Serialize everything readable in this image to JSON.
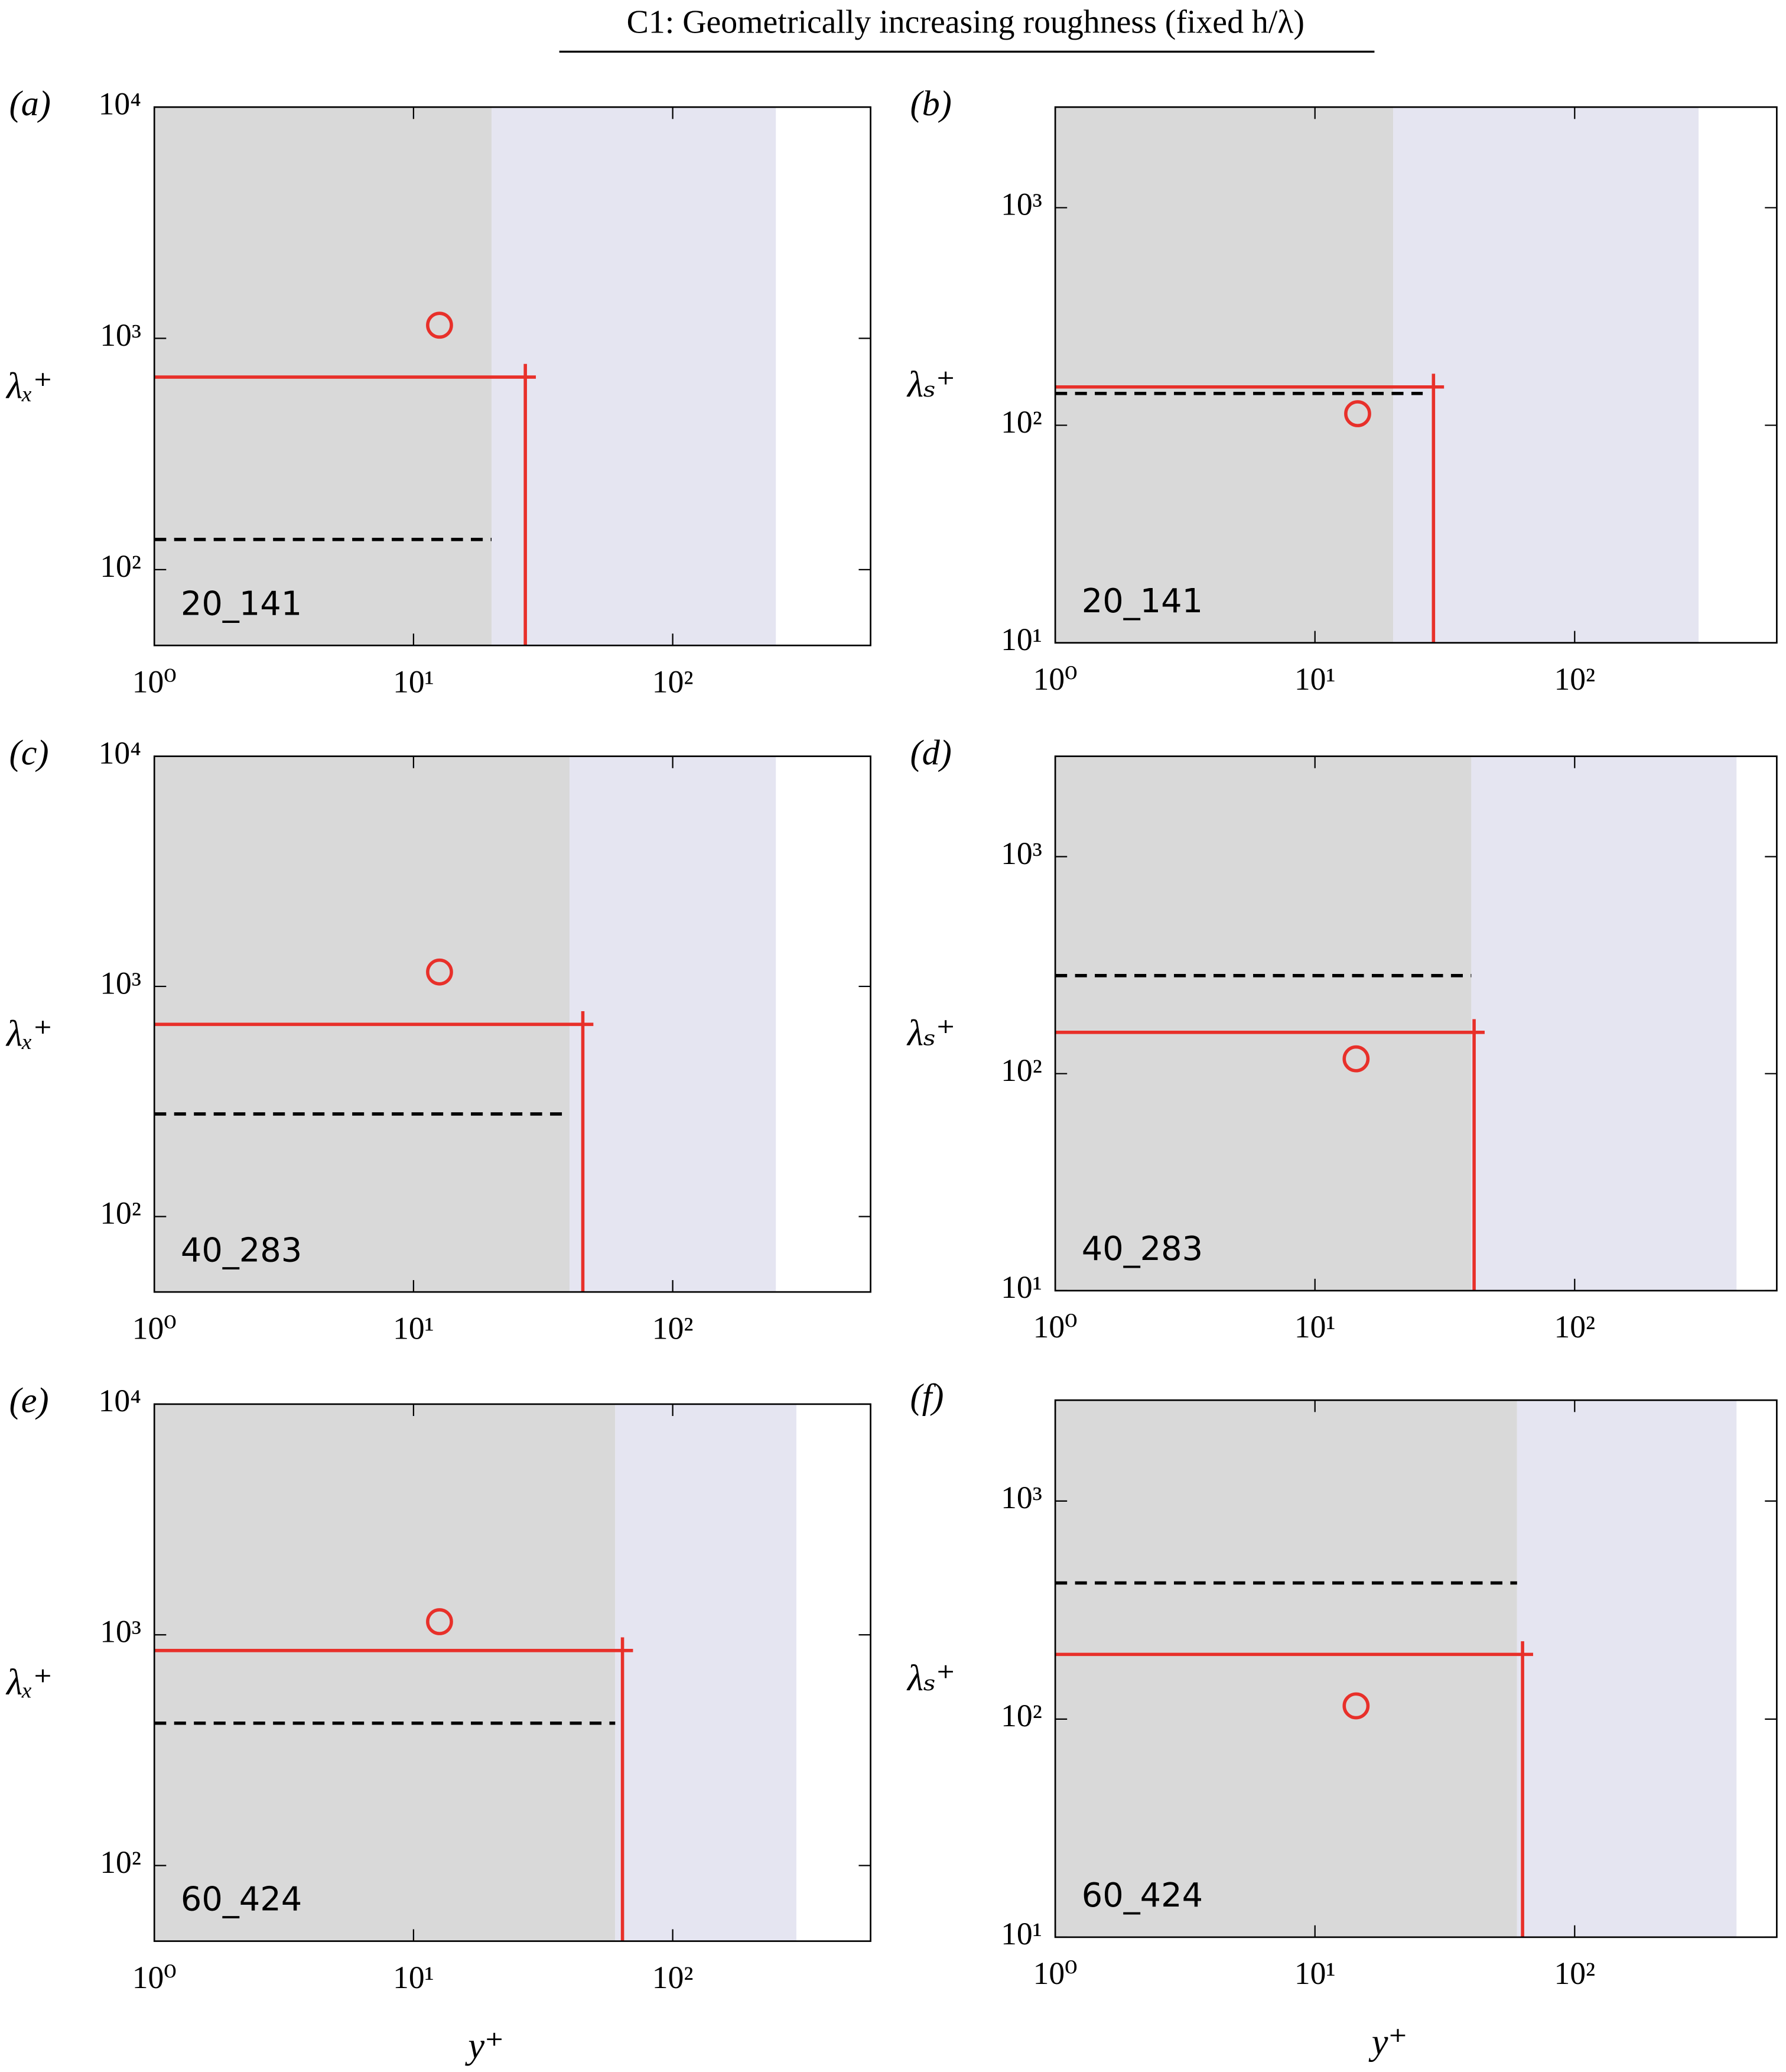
{
  "title": "C1: Geometrically increasing roughness (fixed h/λ)",
  "chart_data": [
    {
      "type": "contour",
      "panel_label": "(a)",
      "ylabel": "λₓ⁺",
      "annotation": "20_141",
      "xscale": "log",
      "yscale": "log",
      "xlim": [
        1,
        580
      ],
      "ylim": [
        47,
        10000
      ],
      "xticks": [
        {
          "value": 1,
          "label": "10⁰"
        },
        {
          "value": 10,
          "label": "10¹"
        },
        {
          "value": 100,
          "label": "10²"
        }
      ],
      "yticks": [
        {
          "value": 100,
          "label": "10²"
        },
        {
          "value": 1000,
          "label": "10³"
        },
        {
          "value": 10000,
          "label": "10⁴"
        }
      ],
      "regions": [
        {
          "x0": 1,
          "x1": 20,
          "color": "#d9d9d9"
        },
        {
          "x0": 20,
          "x1": 250,
          "color": "#e5e5f1"
        }
      ],
      "crosshair": {
        "x": 27,
        "y": 680,
        "color": "#e8302a"
      },
      "peak": {
        "x": 12.6,
        "y": 1140
      },
      "dashed": {
        "y": 135,
        "xmax": 20
      }
    },
    {
      "type": "contour",
      "panel_label": "(b)",
      "ylabel": "λₛ⁺",
      "annotation": "20_141",
      "xscale": "log",
      "yscale": "log",
      "xlim": [
        1,
        600
      ],
      "ylim": [
        10,
        2900
      ],
      "xticks": [
        {
          "value": 1,
          "label": "10⁰"
        },
        {
          "value": 10,
          "label": "10¹"
        },
        {
          "value": 100,
          "label": "10²"
        }
      ],
      "yticks": [
        {
          "value": 10,
          "label": "10¹"
        },
        {
          "value": 100,
          "label": "10²"
        },
        {
          "value": 1000,
          "label": "10³"
        }
      ],
      "regions": [
        {
          "x0": 1,
          "x1": 20,
          "color": "#d9d9d9"
        },
        {
          "x0": 20,
          "x1": 300,
          "color": "#e5e5f1"
        }
      ],
      "crosshair": {
        "x": 28.6,
        "y": 150,
        "color": "#e8302a"
      },
      "peak": {
        "x": 14.6,
        "y": 113
      },
      "dashed": {
        "y": 140,
        "xmax": 26
      }
    },
    {
      "type": "contour",
      "panel_label": "(c)",
      "ylabel": "λₓ⁺",
      "annotation": "40_283",
      "xscale": "log",
      "yscale": "log",
      "xlim": [
        1,
        580
      ],
      "ylim": [
        47,
        10000
      ],
      "xticks": [
        {
          "value": 1,
          "label": "10⁰"
        },
        {
          "value": 10,
          "label": "10¹"
        },
        {
          "value": 100,
          "label": "10²"
        }
      ],
      "yticks": [
        {
          "value": 100,
          "label": "10²"
        },
        {
          "value": 1000,
          "label": "10³"
        },
        {
          "value": 10000,
          "label": "10⁴"
        }
      ],
      "regions": [
        {
          "x0": 1,
          "x1": 40,
          "color": "#d9d9d9"
        },
        {
          "x0": 40,
          "x1": 250,
          "color": "#e5e5f1"
        }
      ],
      "crosshair": {
        "x": 45,
        "y": 684,
        "color": "#e8302a"
      },
      "peak": {
        "x": 12.6,
        "y": 1155
      },
      "dashed": {
        "y": 279,
        "xmax": 40
      }
    },
    {
      "type": "contour",
      "panel_label": "(d)",
      "ylabel": "λₛ⁺",
      "annotation": "40_283",
      "xscale": "log",
      "yscale": "log",
      "xlim": [
        1,
        600
      ],
      "ylim": [
        10,
        2900
      ],
      "xticks": [
        {
          "value": 1,
          "label": "10⁰"
        },
        {
          "value": 10,
          "label": "10¹"
        },
        {
          "value": 100,
          "label": "10²"
        }
      ],
      "yticks": [
        {
          "value": 10,
          "label": "10¹"
        },
        {
          "value": 100,
          "label": "10²"
        },
        {
          "value": 1000,
          "label": "10³"
        }
      ],
      "regions": [
        {
          "x0": 1,
          "x1": 40,
          "color": "#d9d9d9"
        },
        {
          "x0": 40,
          "x1": 420,
          "color": "#e5e5f1"
        }
      ],
      "crosshair": {
        "x": 41,
        "y": 155,
        "color": "#e8302a"
      },
      "peak": {
        "x": 14.4,
        "y": 117
      },
      "dashed": {
        "y": 283,
        "xmax": 40
      }
    },
    {
      "type": "contour",
      "panel_label": "(e)",
      "ylabel": "λₓ⁺",
      "xlabel": "y⁺",
      "annotation": "60_424",
      "xscale": "log",
      "yscale": "log",
      "xlim": [
        1,
        580
      ],
      "ylim": [
        47,
        10000
      ],
      "xticks": [
        {
          "value": 1,
          "label": "10⁰"
        },
        {
          "value": 10,
          "label": "10¹"
        },
        {
          "value": 100,
          "label": "10²"
        }
      ],
      "yticks": [
        {
          "value": 100,
          "label": "10²"
        },
        {
          "value": 1000,
          "label": "10³"
        },
        {
          "value": 10000,
          "label": "10⁴"
        }
      ],
      "regions": [
        {
          "x0": 1,
          "x1": 60,
          "color": "#d9d9d9"
        },
        {
          "x0": 60,
          "x1": 300,
          "color": "#e5e5f1"
        }
      ],
      "crosshair": {
        "x": 64,
        "y": 855,
        "color": "#e8302a"
      },
      "peak": {
        "x": 12.6,
        "y": 1140
      },
      "dashed": {
        "y": 414,
        "xmax": 60
      }
    },
    {
      "type": "contour",
      "panel_label": "(f)",
      "ylabel": "λₛ⁺",
      "xlabel": "y⁺",
      "annotation": "60_424",
      "xscale": "log",
      "yscale": "log",
      "xlim": [
        1,
        600
      ],
      "ylim": [
        10,
        2900
      ],
      "xticks": [
        {
          "value": 1,
          "label": "10⁰"
        },
        {
          "value": 10,
          "label": "10¹"
        },
        {
          "value": 100,
          "label": "10²"
        }
      ],
      "yticks": [
        {
          "value": 10,
          "label": "10¹"
        },
        {
          "value": 100,
          "label": "10²"
        },
        {
          "value": 1000,
          "label": "10³"
        }
      ],
      "regions": [
        {
          "x0": 1,
          "x1": 60,
          "color": "#d9d9d9"
        },
        {
          "x0": 60,
          "x1": 420,
          "color": "#e5e5f1"
        }
      ],
      "crosshair": {
        "x": 63,
        "y": 198,
        "color": "#e8302a"
      },
      "peak": {
        "x": 14.4,
        "y": 115
      },
      "dashed": {
        "y": 421,
        "xmax": 60
      }
    }
  ]
}
